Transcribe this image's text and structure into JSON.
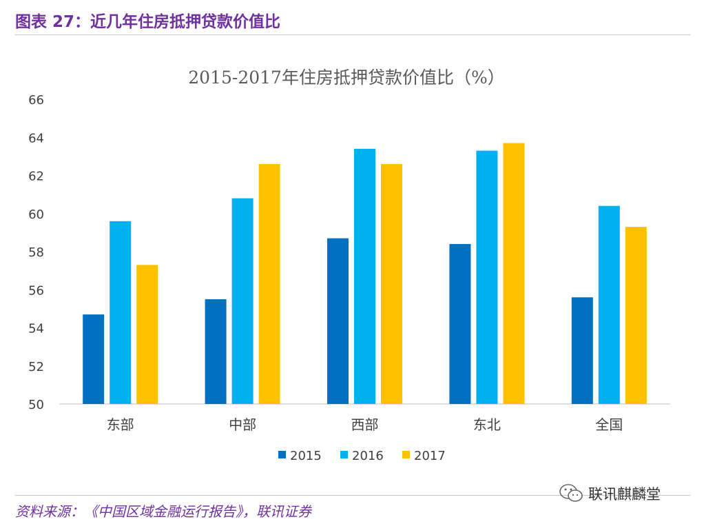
{
  "header": {
    "figure_title": "图表 27：近几年住房抵押贷款价值比"
  },
  "footer": {
    "source": "资料来源：《中国区域金融运行报告》，联讯证券",
    "watermark": "联讯麒麟堂",
    "watermark_icon": "wechat-icon"
  },
  "chart_data": {
    "type": "bar",
    "title": "2015-2017年住房抵押贷款价值比（%）",
    "categories": [
      "东部",
      "中部",
      "西部",
      "东北",
      "全国"
    ],
    "series": [
      {
        "name": "2015",
        "color": "#0070c0",
        "values": [
          54.7,
          55.5,
          58.7,
          58.4,
          55.6
        ]
      },
      {
        "name": "2016",
        "color": "#00b0f0",
        "values": [
          59.6,
          60.8,
          63.4,
          63.3,
          60.4
        ]
      },
      {
        "name": "2017",
        "color": "#ffc000",
        "values": [
          57.3,
          62.6,
          62.6,
          63.7,
          59.3
        ]
      }
    ],
    "ylim": [
      50,
      66
    ],
    "yticks": [
      50,
      52,
      54,
      56,
      58,
      60,
      62,
      64,
      66
    ],
    "grid": false,
    "legend_position": "bottom"
  }
}
